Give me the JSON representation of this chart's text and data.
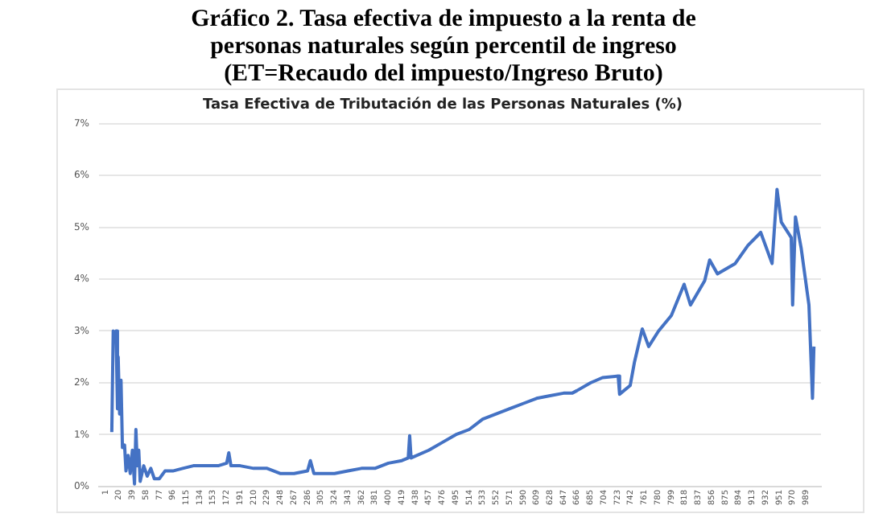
{
  "chart_data": {
    "type": "line",
    "title": "Gráfico 2. Tasa efectiva de impuesto a la renta de personas naturales según percentil de ingreso",
    "subtitle": "(ET=Recaudo del impuesto/Ingreso Bruto)",
    "annotations": [
      "Tasa Efectiva de Tributación de las Personas Naturales (%)"
    ],
    "x": [
      10,
      12,
      14,
      16,
      18,
      19,
      21,
      23,
      25,
      28,
      30,
      33,
      36,
      39,
      42,
      44,
      46,
      48,
      50,
      55,
      60,
      65,
      70,
      77,
      85,
      96,
      110,
      125,
      140,
      160,
      172,
      175,
      178,
      191,
      210,
      229,
      248,
      267,
      286,
      290,
      295,
      324,
      343,
      362,
      381,
      400,
      419,
      428,
      430,
      432,
      457,
      476,
      495,
      514,
      533,
      552,
      571,
      590,
      609,
      628,
      647,
      659,
      666,
      685,
      702,
      724,
      726,
      741,
      747,
      758,
      767,
      781,
      799,
      817,
      826,
      846,
      853,
      864,
      889,
      907,
      925,
      941,
      948,
      954,
      968,
      970,
      974,
      982,
      993,
      998,
      1000
    ],
    "series": [
      {
        "color": "#4472c4",
        "values": [
          1.05,
          3.0,
          2.9,
          3.0,
          1.5,
          2.5,
          1.4,
          2.05,
          0.75,
          0.8,
          0.3,
          0.6,
          0.25,
          0.7,
          0.05,
          1.1,
          0.4,
          0.7,
          0.1,
          0.4,
          0.2,
          0.35,
          0.15,
          0.15,
          0.3,
          0.3,
          0.35,
          0.4,
          0.4,
          0.4,
          0.45,
          0.65,
          0.4,
          0.4,
          0.35,
          0.35,
          0.25,
          0.25,
          0.3,
          0.5,
          0.25,
          0.25,
          0.3,
          0.35,
          0.35,
          0.45,
          0.5,
          0.55,
          0.98,
          0.55,
          0.7,
          0.85,
          1.0,
          1.1,
          1.3,
          1.4,
          1.5,
          1.6,
          1.7,
          1.75,
          1.8,
          1.8,
          1.85,
          2.0,
          2.1,
          2.13,
          1.78,
          1.95,
          2.4,
          3.04,
          2.7,
          3.0,
          3.3,
          3.9,
          3.5,
          3.97,
          4.37,
          4.1,
          4.3,
          4.65,
          4.9,
          4.3,
          5.73,
          5.1,
          4.8,
          3.5,
          5.2,
          4.6,
          3.5,
          1.7,
          2.7
        ]
      }
    ],
    "xlim": [
      -8,
      1010
    ],
    "xticks": [
      1,
      20,
      39,
      58,
      77,
      96,
      115,
      134,
      153,
      172,
      191,
      210,
      229,
      248,
      267,
      286,
      305,
      324,
      343,
      362,
      381,
      400,
      419,
      438,
      457,
      476,
      495,
      514,
      533,
      552,
      571,
      590,
      609,
      628,
      647,
      666,
      685,
      704,
      723,
      742,
      761,
      780,
      799,
      818,
      837,
      856,
      875,
      894,
      913,
      932,
      951,
      970,
      989
    ],
    "ylim": [
      0,
      7
    ],
    "yticks": [
      {
        "value": 0,
        "label": "0%"
      },
      {
        "value": 1,
        "label": "1%"
      },
      {
        "value": 2,
        "label": "2%"
      },
      {
        "value": 3,
        "label": "3%"
      },
      {
        "value": 4,
        "label": "4%"
      },
      {
        "value": 5,
        "label": "5%"
      },
      {
        "value": 6,
        "label": "6%"
      },
      {
        "value": 7,
        "label": "7%"
      }
    ],
    "grid": "y",
    "legend": false,
    "marker": "none",
    "line_style": "solid"
  }
}
